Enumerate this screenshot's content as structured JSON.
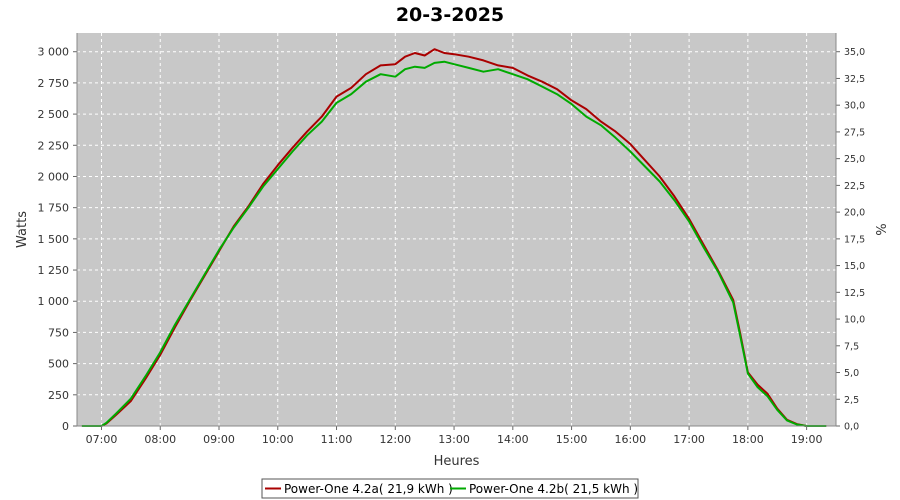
{
  "chart_data": {
    "type": "line",
    "title": "20-3-2025",
    "xlabel": "Heures",
    "ylabel": "Watts",
    "y2label": "%",
    "x_ticks": [
      "07:00",
      "08:00",
      "09:00",
      "10:00",
      "11:00",
      "12:00",
      "13:00",
      "14:00",
      "15:00",
      "16:00",
      "17:00",
      "18:00",
      "19:00"
    ],
    "y_ticks": [
      "0",
      "250",
      "500",
      "750",
      "1 000",
      "1 250",
      "1 500",
      "1 750",
      "2 000",
      "2 250",
      "2 500",
      "2 750",
      "3 000"
    ],
    "y2_ticks": [
      "0,0",
      "2,5",
      "5,0",
      "7,5",
      "10,0",
      "12,5",
      "15,0",
      "17,5",
      "20,0",
      "22,5",
      "25,0",
      "27,5",
      "30,0",
      "32,5",
      "35,0"
    ],
    "xlim": [
      "06:35",
      "19:30"
    ],
    "ylim": [
      0,
      3150
    ],
    "y2lim": [
      0,
      36.75
    ],
    "grid": true,
    "background": "#c8c8c8",
    "legend_position": "bottom",
    "x": [
      "06:40",
      "06:50",
      "07:00",
      "07:05",
      "07:15",
      "07:30",
      "07:45",
      "08:00",
      "08:15",
      "08:30",
      "08:45",
      "09:00",
      "09:15",
      "09:30",
      "09:45",
      "10:00",
      "10:15",
      "10:30",
      "10:45",
      "11:00",
      "11:15",
      "11:30",
      "11:45",
      "12:00",
      "12:10",
      "12:20",
      "12:30",
      "12:40",
      "12:50",
      "13:00",
      "13:15",
      "13:30",
      "13:45",
      "14:00",
      "14:15",
      "14:30",
      "14:45",
      "15:00",
      "15:15",
      "15:30",
      "15:45",
      "16:00",
      "16:15",
      "16:30",
      "16:45",
      "17:00",
      "17:15",
      "17:30",
      "17:45",
      "17:52",
      "18:00",
      "18:10",
      "18:20",
      "18:30",
      "18:40",
      "18:50",
      "19:00",
      "19:10",
      "19:20"
    ],
    "series": [
      {
        "name": "Power-One 4.2a( 21,9 kWh )",
        "color": "#aa0000",
        "values": [
          0,
          0,
          0,
          20,
          90,
          200,
          380,
          570,
          790,
          1000,
          1200,
          1400,
          1600,
          1760,
          1940,
          2090,
          2230,
          2360,
          2480,
          2640,
          2710,
          2820,
          2890,
          2900,
          2960,
          2990,
          2970,
          3020,
          2990,
          2980,
          2960,
          2930,
          2890,
          2870,
          2810,
          2760,
          2700,
          2610,
          2540,
          2440,
          2360,
          2260,
          2130,
          2000,
          1840,
          1660,
          1450,
          1240,
          1010,
          750,
          430,
          330,
          260,
          140,
          50,
          15,
          0,
          0,
          0
        ]
      },
      {
        "name": "Power-One 4.2b( 21,5 kWh )",
        "color": "#00aa00",
        "values": [
          0,
          0,
          0,
          25,
          100,
          220,
          400,
          590,
          810,
          1010,
          1210,
          1410,
          1590,
          1750,
          1920,
          2060,
          2200,
          2330,
          2440,
          2590,
          2660,
          2760,
          2820,
          2800,
          2860,
          2880,
          2870,
          2910,
          2920,
          2900,
          2870,
          2840,
          2860,
          2820,
          2780,
          2720,
          2660,
          2580,
          2480,
          2410,
          2310,
          2200,
          2080,
          1960,
          1810,
          1640,
          1430,
          1230,
          990,
          730,
          420,
          310,
          240,
          130,
          45,
          12,
          0,
          0,
          0
        ]
      }
    ]
  }
}
